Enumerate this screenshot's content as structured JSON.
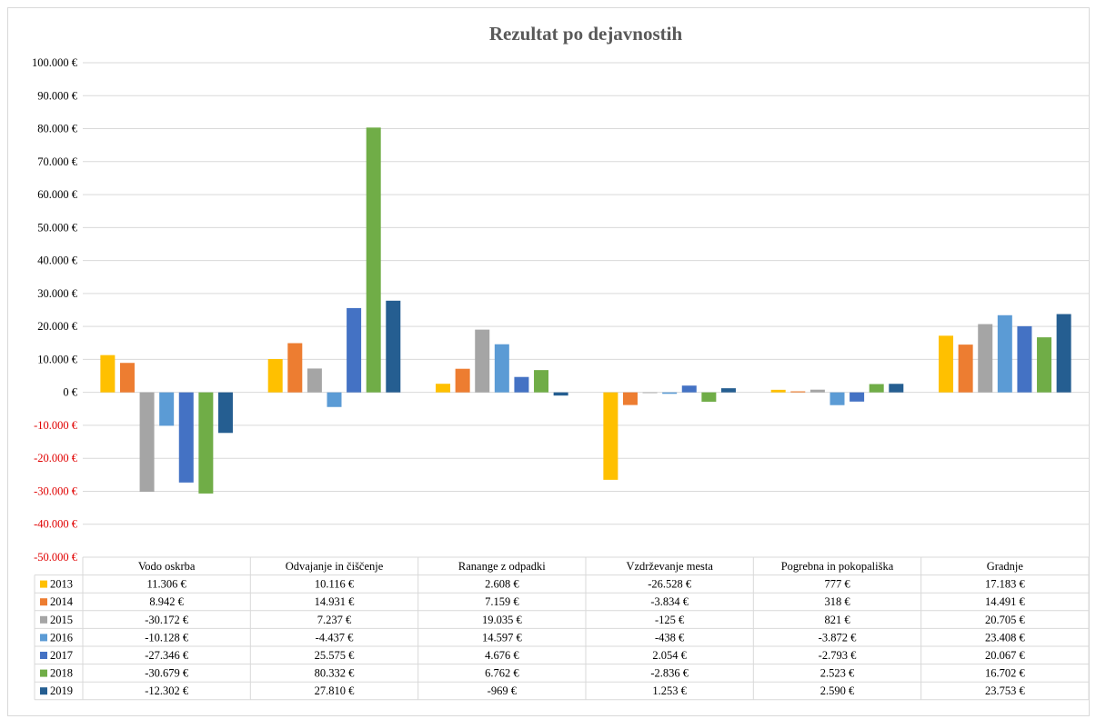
{
  "chart_data": {
    "type": "bar",
    "title": "Rezultat po dejavnostih",
    "xlabel": "",
    "ylabel": "",
    "ylim": [
      -50000,
      100000
    ],
    "ytick_values": [
      100000,
      90000,
      80000,
      70000,
      60000,
      50000,
      40000,
      30000,
      20000,
      10000,
      0,
      -10000,
      -20000,
      -30000,
      -40000,
      -50000
    ],
    "ytick_labels": [
      "100.000 €",
      "90.000 €",
      "80.000 €",
      "70.000 €",
      "60.000 €",
      "50.000 €",
      "40.000 €",
      "30.000 €",
      "20.000 €",
      "10.000 €",
      "0 €",
      "-10.000 €",
      "-20.000 €",
      "-30.000 €",
      "-40.000 €",
      "-50.000 €"
    ],
    "negative_tick_color": "#e00000",
    "grid": true,
    "legend": "data-table-below",
    "categories": [
      "Vodo oskrba",
      "Odvajanje in čiščenje",
      "Ranange z odpadki",
      "Vzdrževanje mesta",
      "Pogrebna in pokopališka",
      "Gradnje"
    ],
    "series": [
      {
        "name": "2013",
        "color": "#ffc000",
        "values": [
          11306,
          10116,
          2608,
          -26528,
          777,
          17183
        ],
        "labels": [
          "11.306 €",
          "10.116 €",
          "2.608 €",
          "-26.528 €",
          "777 €",
          "17.183 €"
        ]
      },
      {
        "name": "2014",
        "color": "#ed7d31",
        "values": [
          8942,
          14931,
          7159,
          -3834,
          318,
          14491
        ],
        "labels": [
          "8.942 €",
          "14.931 €",
          "7.159 €",
          "-3.834 €",
          "318 €",
          "14.491 €"
        ]
      },
      {
        "name": "2015",
        "color": "#a5a5a5",
        "values": [
          -30172,
          7237,
          19035,
          -125,
          821,
          20705
        ],
        "labels": [
          "-30.172 €",
          "7.237 €",
          "19.035 €",
          "-125 €",
          "821 €",
          "20.705 €"
        ]
      },
      {
        "name": "2016",
        "color": "#5b9bd5",
        "values": [
          -10128,
          -4437,
          14597,
          -438,
          -3872,
          23408
        ],
        "labels": [
          "-10.128 €",
          "-4.437 €",
          "14.597 €",
          "-438 €",
          "-3.872 €",
          "23.408 €"
        ]
      },
      {
        "name": "2017",
        "color": "#4472c4",
        "values": [
          -27346,
          25575,
          4676,
          2054,
          -2793,
          20067
        ],
        "labels": [
          "-27.346 €",
          "25.575 €",
          "4.676 €",
          "2.054 €",
          "-2.793 €",
          "20.067 €"
        ]
      },
      {
        "name": "2018",
        "color": "#70ad47",
        "values": [
          -30679,
          80332,
          6762,
          -2836,
          2523,
          16702
        ],
        "labels": [
          "-30.679 €",
          "80.332 €",
          "6.762 €",
          "-2.836 €",
          "2.523 €",
          "16.702 €"
        ]
      },
      {
        "name": "2019",
        "color": "#255e91",
        "values": [
          -12302,
          27810,
          -969,
          1253,
          2590,
          23753
        ],
        "labels": [
          "-12.302 €",
          "27.810 €",
          "-969 €",
          "1.253 €",
          "2.590 €",
          "23.753 €"
        ]
      }
    ]
  }
}
